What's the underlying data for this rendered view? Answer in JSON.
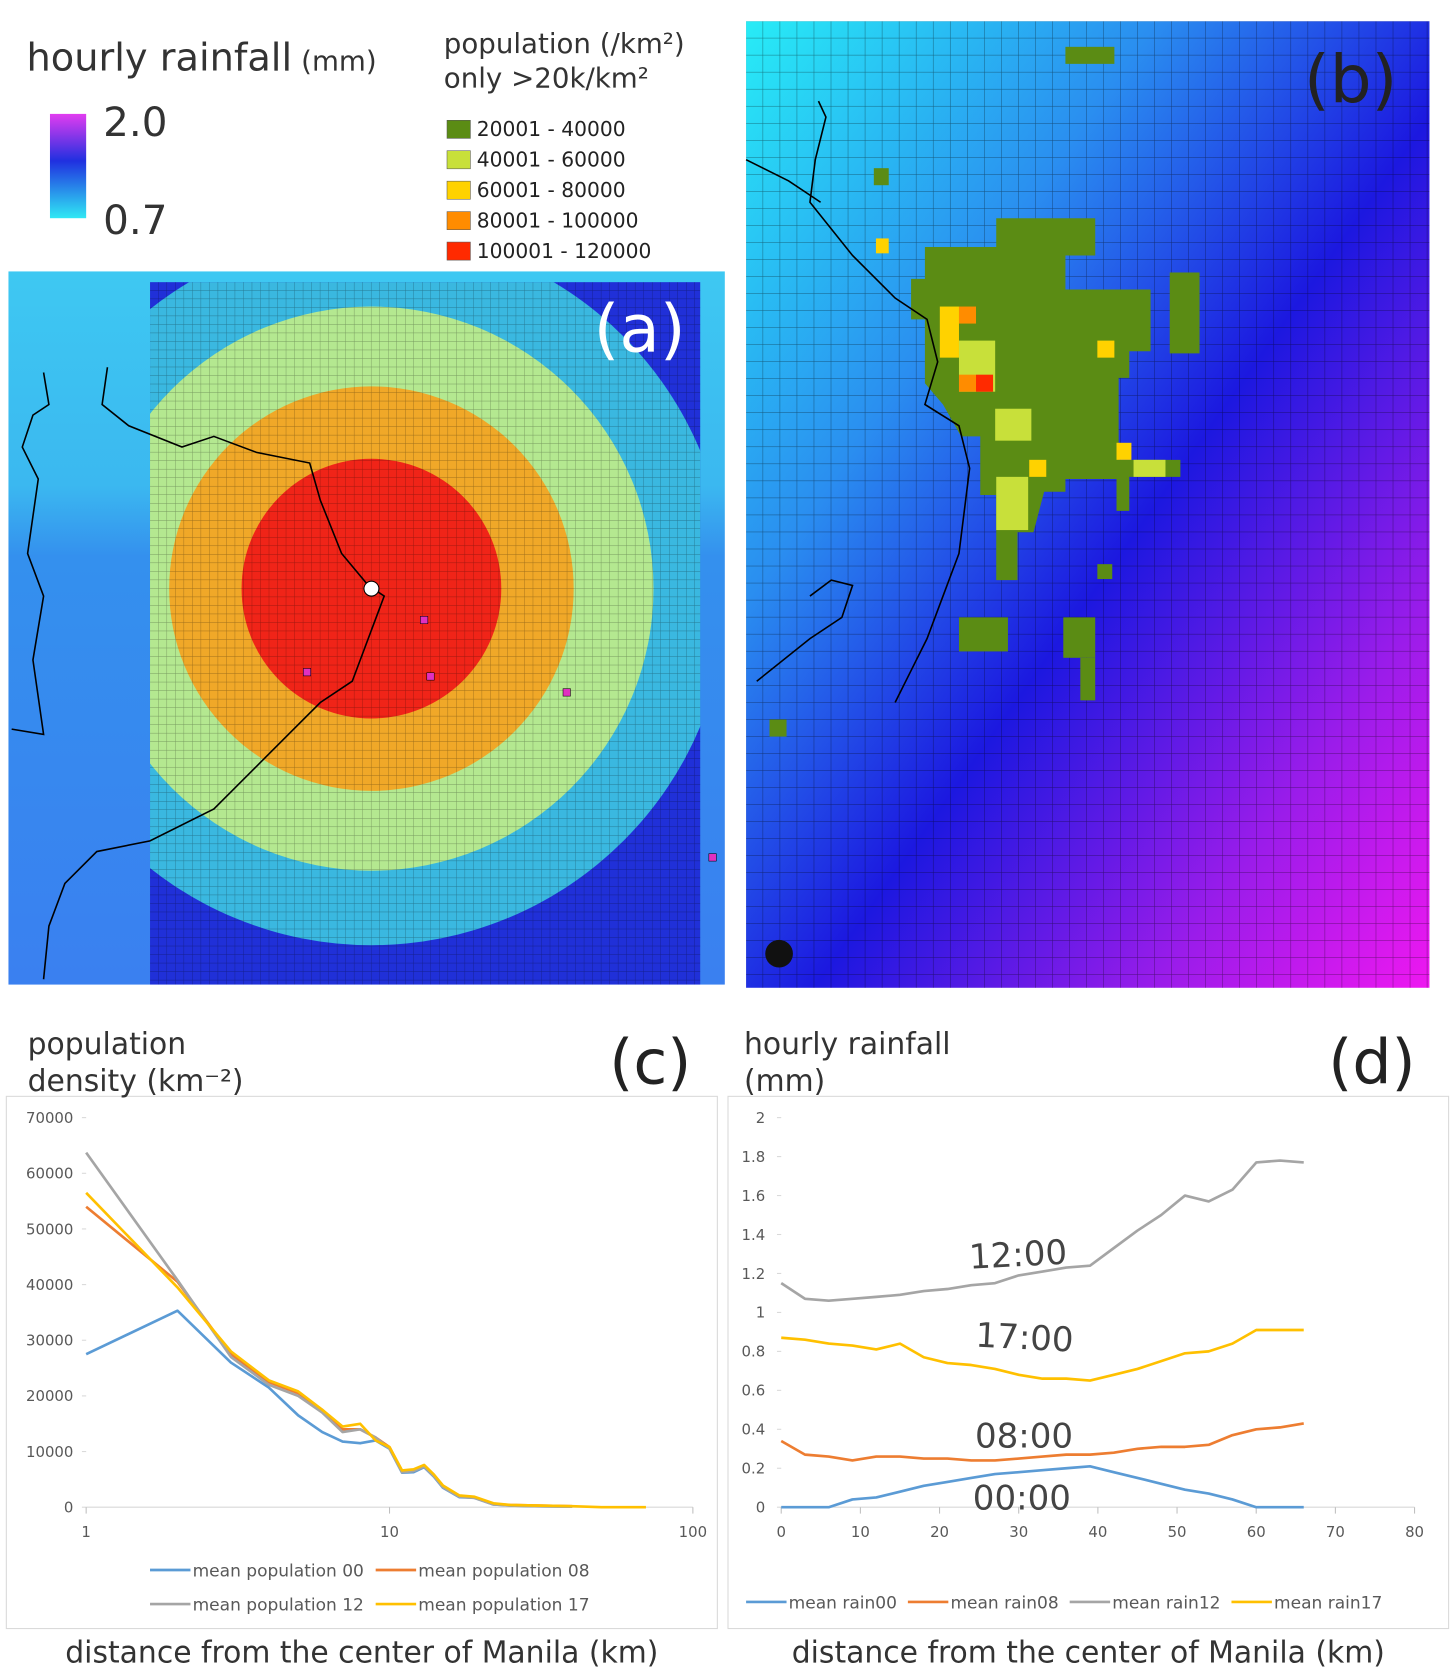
{
  "legend_rainfall": {
    "title": "hourly rainfall",
    "unit": "(mm)",
    "max": "2.0",
    "min": "0.7"
  },
  "legend_population": {
    "title": "population (/km²)",
    "subtitle": "only >20k/km²",
    "classes": [
      {
        "label": "20001 - 40000",
        "color": "#5b8c14"
      },
      {
        "label": "40001 - 60000",
        "color": "#c8e03a"
      },
      {
        "label": "60001 - 80000",
        "color": "#ffd200"
      },
      {
        "label": "80001 - 100000",
        "color": "#ff8c00"
      },
      {
        "label": "100001 - 120000",
        "color": "#ff2a00"
      }
    ]
  },
  "panels": {
    "a": "(a)",
    "b": "(b)"
  },
  "chart_data": [
    {
      "type": "line",
      "label": "(c)",
      "ylabel": [
        "population",
        "density (km⁻²)"
      ],
      "xlabel": "distance from the center of Manila (km)",
      "xscale": "log",
      "x": [
        1,
        2,
        3,
        4,
        5,
        6,
        7,
        8,
        9,
        10,
        11,
        12,
        13,
        14,
        15,
        17,
        19,
        22,
        25,
        30,
        40,
        50,
        70
      ],
      "xlim": [
        1,
        100
      ],
      "xticks": [
        1,
        10,
        100
      ],
      "ylim": [
        0,
        70000
      ],
      "yticks": [
        0,
        10000,
        20000,
        30000,
        40000,
        50000,
        60000,
        70000
      ],
      "legend": "bottom",
      "series": [
        {
          "name": "mean population 00",
          "color": "#5b9bd5",
          "values": [
            27500,
            35300,
            26000,
            21500,
            16500,
            13500,
            11800,
            11500,
            12000,
            10500,
            6200,
            6300,
            7200,
            5500,
            3500,
            1800,
            1700,
            500,
            300,
            200,
            100,
            null,
            null
          ]
        },
        {
          "name": "mean population 08",
          "color": "#ed7d31",
          "values": [
            54000,
            40500,
            27500,
            22500,
            20500,
            17500,
            14000,
            14000,
            12500,
            10800,
            6500,
            6700,
            7500,
            5800,
            3800,
            2000,
            1800,
            600,
            400,
            300,
            200,
            null,
            null
          ]
        },
        {
          "name": "mean population 12",
          "color": "#a5a5a5",
          "values": [
            63700,
            40800,
            27000,
            22000,
            20000,
            17000,
            13500,
            14000,
            12500,
            10500,
            6300,
            6500,
            7300,
            5600,
            3600,
            1900,
            1700,
            500,
            300,
            200,
            100,
            null,
            null
          ]
        },
        {
          "name": "mean population 17",
          "color": "#ffc000",
          "values": [
            56500,
            39500,
            28000,
            22800,
            20800,
            17500,
            14500,
            15000,
            12000,
            10800,
            6600,
            6800,
            7600,
            5900,
            3900,
            2100,
            1900,
            700,
            400,
            300,
            200,
            0,
            0
          ]
        }
      ]
    },
    {
      "type": "line",
      "label": "(d)",
      "ylabel": [
        "hourly rainfall",
        "(mm)"
      ],
      "xlabel": "distance from the center of Manila (km)",
      "x": [
        0,
        3,
        6,
        9,
        12,
        15,
        18,
        21,
        24,
        27,
        30,
        33,
        36,
        39,
        42,
        45,
        48,
        51,
        54,
        57,
        60,
        63,
        66
      ],
      "xlim": [
        0,
        80
      ],
      "xticks": [
        0,
        10,
        20,
        30,
        40,
        50,
        60,
        70,
        80
      ],
      "ylim": [
        0,
        2
      ],
      "yticks": [
        0,
        0.2,
        0.4,
        0.6,
        0.8,
        1,
        1.2,
        1.4,
        1.6,
        1.8,
        2
      ],
      "legend": "bottom",
      "annotations": [
        "12:00",
        "17:00",
        "08:00",
        "00:00"
      ],
      "series": [
        {
          "name": "mean rain00",
          "color": "#5b9bd5",
          "values": [
            0,
            0,
            0,
            0.04,
            0.05,
            0.08,
            0.11,
            0.13,
            0.15,
            0.17,
            0.18,
            0.19,
            0.2,
            0.21,
            0.18,
            0.15,
            0.12,
            0.09,
            0.07,
            0.04,
            0,
            0,
            0
          ]
        },
        {
          "name": "mean rain08",
          "color": "#ed7d31",
          "values": [
            0.34,
            0.27,
            0.26,
            0.24,
            0.26,
            0.26,
            0.25,
            0.25,
            0.24,
            0.24,
            0.25,
            0.26,
            0.27,
            0.27,
            0.28,
            0.3,
            0.31,
            0.31,
            0.32,
            0.37,
            0.4,
            0.41,
            0.43
          ]
        },
        {
          "name": "mean rain12",
          "color": "#a5a5a5",
          "values": [
            1.15,
            1.07,
            1.06,
            1.07,
            1.08,
            1.09,
            1.11,
            1.12,
            1.14,
            1.15,
            1.19,
            1.21,
            1.23,
            1.24,
            1.33,
            1.42,
            1.5,
            1.6,
            1.57,
            1.63,
            1.77,
            1.78,
            1.77
          ]
        },
        {
          "name": "mean rain17",
          "color": "#ffc000",
          "values": [
            0.87,
            0.86,
            0.84,
            0.83,
            0.81,
            0.84,
            0.77,
            0.74,
            0.73,
            0.71,
            0.68,
            0.66,
            0.66,
            0.65,
            0.68,
            0.71,
            0.75,
            0.79,
            0.8,
            0.84,
            0.91,
            0.91,
            0.91
          ]
        }
      ]
    }
  ]
}
